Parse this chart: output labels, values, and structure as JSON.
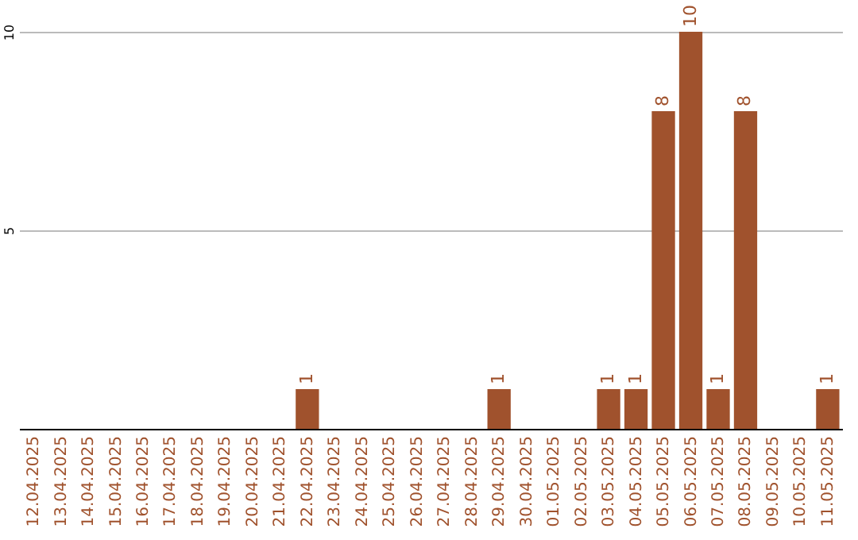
{
  "chart_data": {
    "type": "bar",
    "categories": [
      "12.04.2025",
      "13.04.2025",
      "14.04.2025",
      "15.04.2025",
      "16.04.2025",
      "17.04.2025",
      "18.04.2025",
      "19.04.2025",
      "20.04.2025",
      "21.04.2025",
      "22.04.2025",
      "23.04.2025",
      "24.04.2025",
      "25.04.2025",
      "26.04.2025",
      "27.04.2025",
      "28.04.2025",
      "29.04.2025",
      "30.04.2025",
      "01.05.2025",
      "02.05.2025",
      "03.05.2025",
      "04.05.2025",
      "05.05.2025",
      "06.05.2025",
      "07.05.2025",
      "08.05.2025",
      "09.05.2025",
      "10.05.2025",
      "11.05.2025"
    ],
    "values": [
      0,
      0,
      0,
      0,
      0,
      0,
      0,
      0,
      0,
      0,
      1,
      0,
      0,
      0,
      0,
      0,
      0,
      1,
      0,
      0,
      0,
      1,
      1,
      8,
      10,
      1,
      8,
      0,
      0,
      1
    ],
    "value_labels": [
      null,
      null,
      null,
      null,
      null,
      null,
      null,
      null,
      null,
      null,
      "1",
      null,
      null,
      null,
      null,
      null,
      null,
      "1",
      null,
      null,
      null,
      "1",
      "1",
      "8",
      "10",
      "1",
      "8",
      null,
      null,
      "1"
    ],
    "color": "#a0522d",
    "ylim": [
      0,
      10
    ],
    "yticks": [
      5,
      10
    ],
    "grid": "y"
  }
}
